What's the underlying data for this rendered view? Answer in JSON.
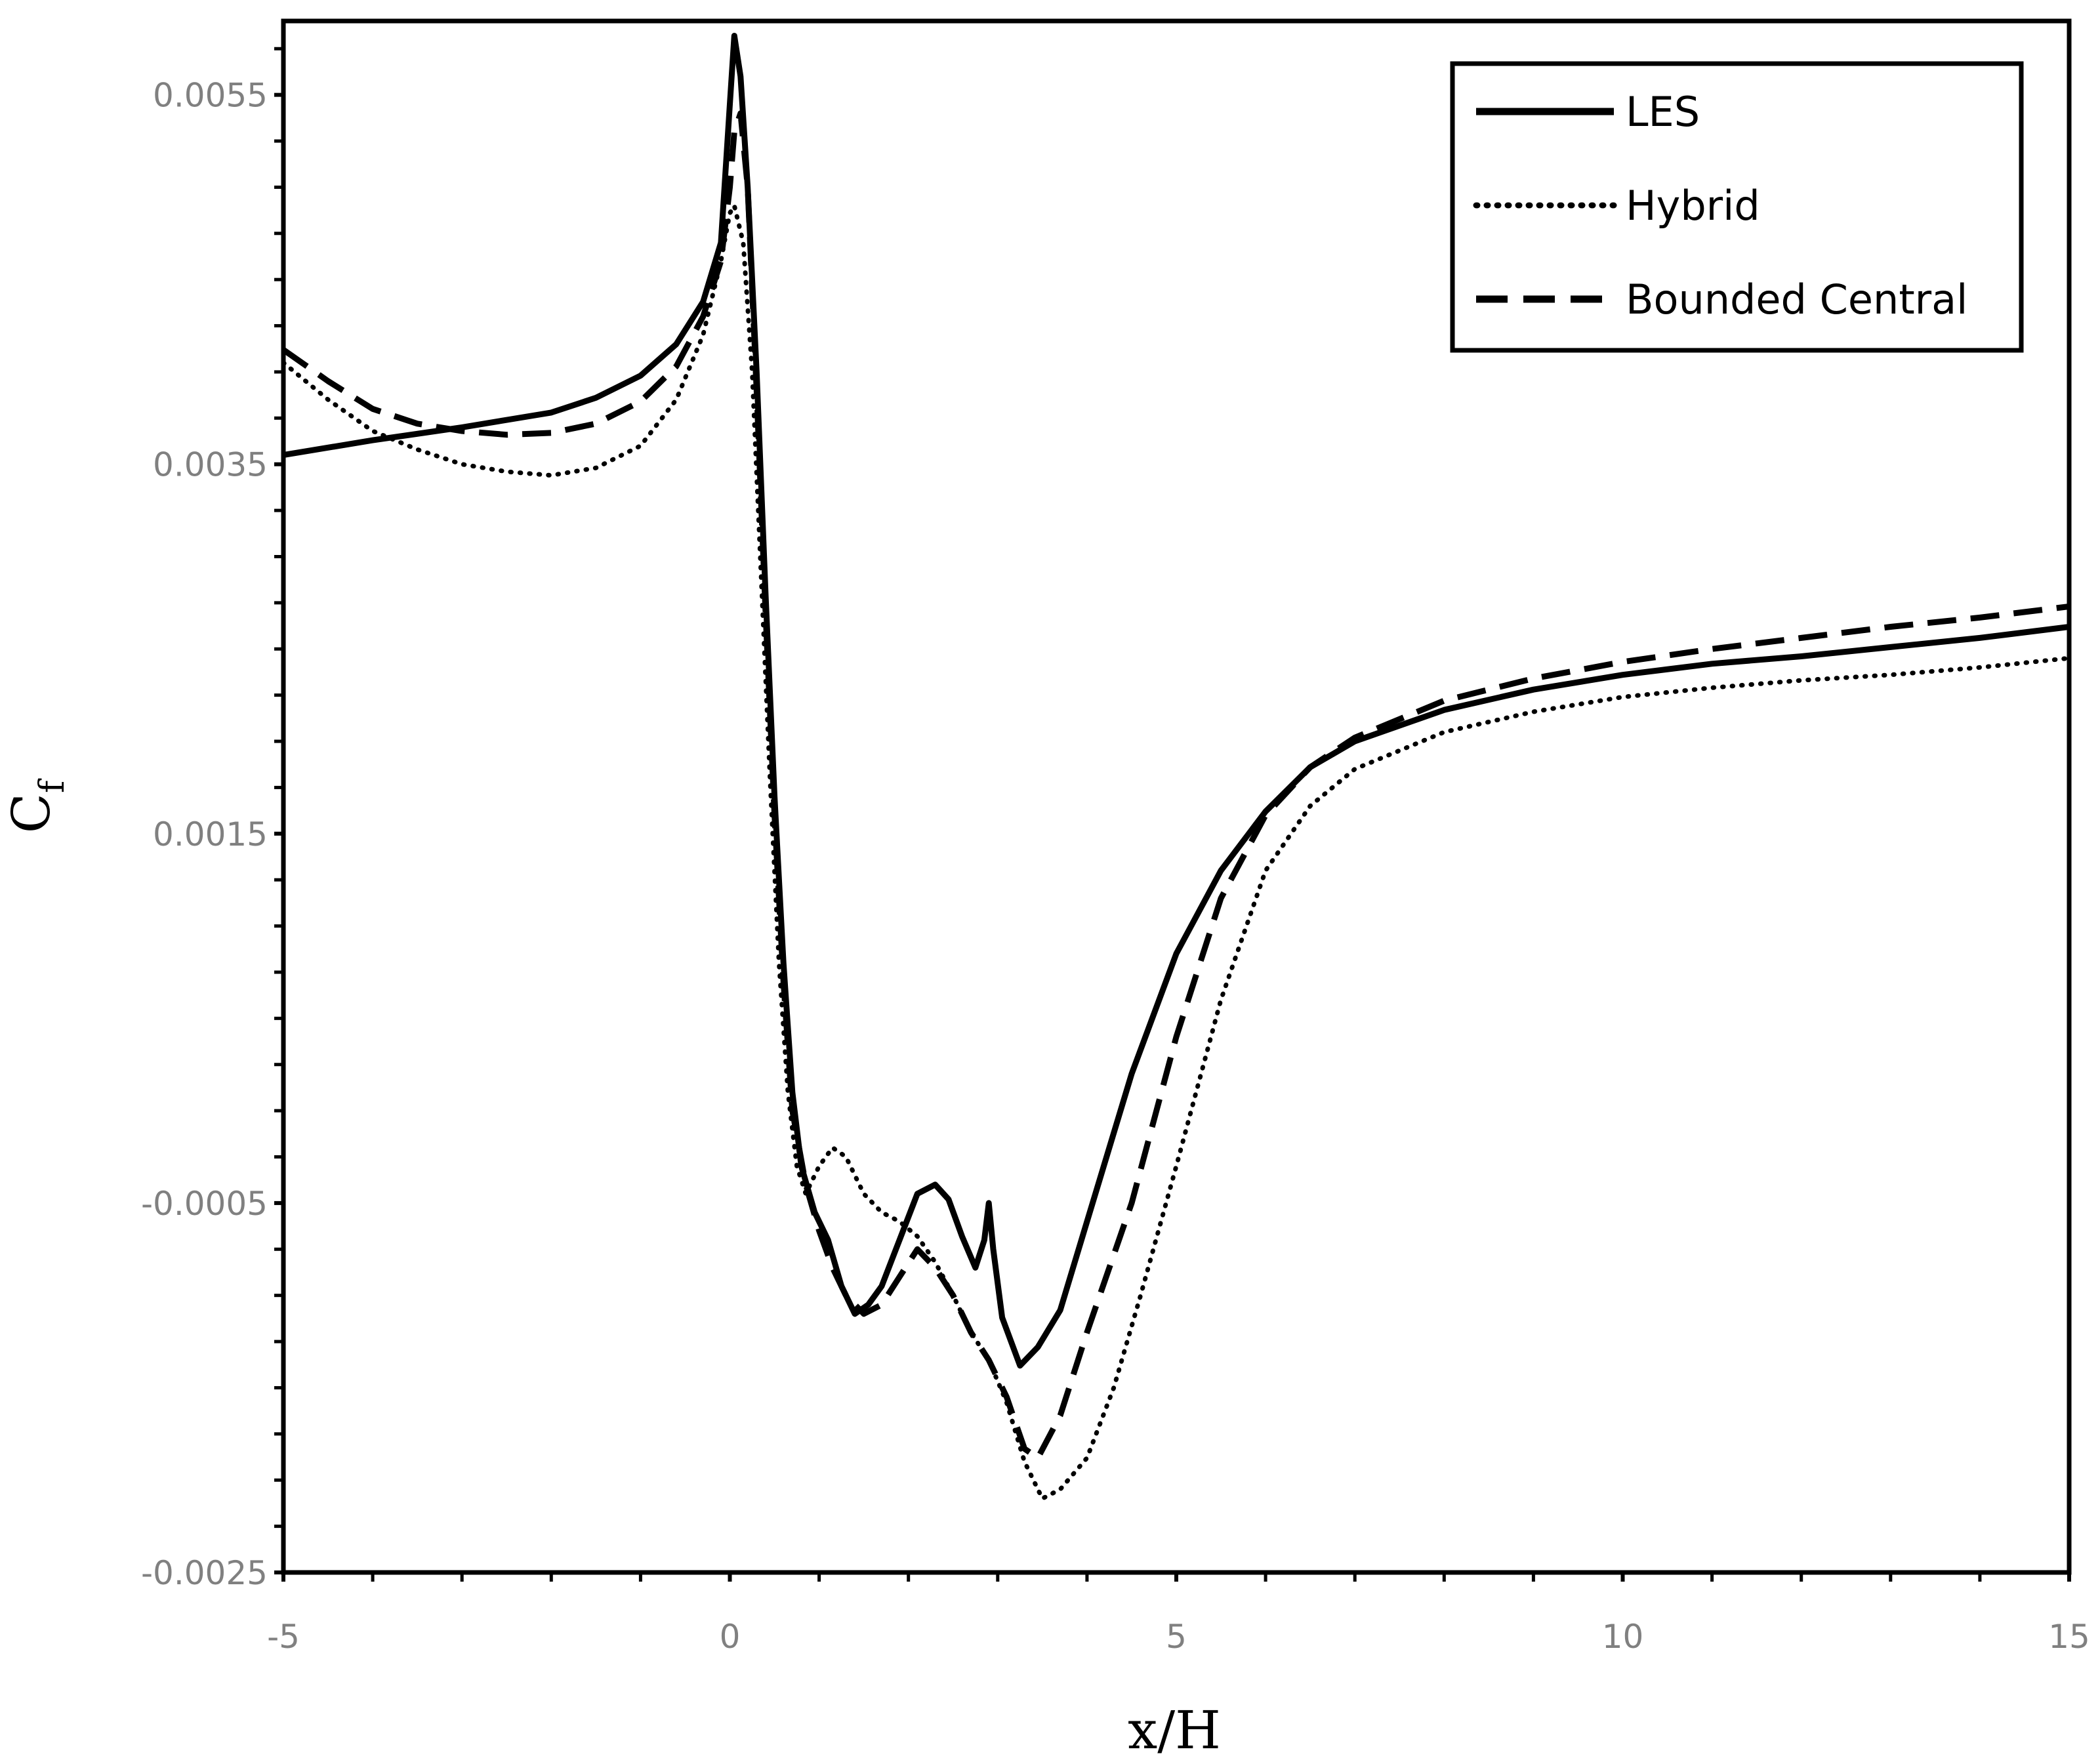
{
  "chart_data": {
    "type": "line",
    "title": "",
    "xlabel": "x/H",
    "ylabel": {
      "main": "C",
      "subscript": "f"
    },
    "xlim": [
      -5,
      15
    ],
    "ylim": [
      -0.0025,
      0.0059
    ],
    "x_ticks": [
      {
        "value": -5,
        "label": "-5"
      },
      {
        "value": 0,
        "label": "0"
      },
      {
        "value": 5,
        "label": "5"
      },
      {
        "value": 10,
        "label": "10"
      },
      {
        "value": 15,
        "label": "15"
      }
    ],
    "y_ticks": [
      {
        "value": -0.0025,
        "label": "-0.0025"
      },
      {
        "value": -0.0005,
        "label": "-0.0005"
      },
      {
        "value": 0.0015,
        "label": "0.0015"
      },
      {
        "value": 0.0035,
        "label": "0.0035"
      },
      {
        "value": 0.0055,
        "label": "0.0055"
      }
    ],
    "grid": false,
    "legend_position": "top-right",
    "series": [
      {
        "name": "LES",
        "style": "solid",
        "color": "#000000",
        "points": [
          [
            -5,
            0.00355
          ],
          [
            -4,
            0.00363
          ],
          [
            -3,
            0.0037
          ],
          [
            -2,
            0.00378
          ],
          [
            -1.5,
            0.00386
          ],
          [
            -1,
            0.00398
          ],
          [
            -0.6,
            0.00415
          ],
          [
            -0.3,
            0.00438
          ],
          [
            -0.1,
            0.0047
          ],
          [
            0,
            0.00545
          ],
          [
            0.05,
            0.00582
          ],
          [
            0.12,
            0.0056
          ],
          [
            0.2,
            0.005
          ],
          [
            0.3,
            0.004
          ],
          [
            0.4,
            0.0028
          ],
          [
            0.5,
            0.0017
          ],
          [
            0.6,
            0.0008
          ],
          [
            0.7,
            0.0001
          ],
          [
            0.8,
            -0.0003
          ],
          [
            0.95,
            -0.00055
          ],
          [
            1.1,
            -0.0007
          ],
          [
            1.25,
            -0.00095
          ],
          [
            1.4,
            -0.0011
          ],
          [
            1.55,
            -0.00105
          ],
          [
            1.7,
            -0.00095
          ],
          [
            1.9,
            -0.0007
          ],
          [
            2.1,
            -0.00045
          ],
          [
            2.3,
            -0.0004
          ],
          [
            2.45,
            -0.00048
          ],
          [
            2.6,
            -0.00068
          ],
          [
            2.75,
            -0.00085
          ],
          [
            2.85,
            -0.0007
          ],
          [
            2.9,
            -0.0005
          ],
          [
            2.95,
            -0.00075
          ],
          [
            3.05,
            -0.00112
          ],
          [
            3.25,
            -0.00138
          ],
          [
            3.45,
            -0.00128
          ],
          [
            3.7,
            -0.00108
          ],
          [
            4,
            -0.0006
          ],
          [
            4.5,
            0.0002
          ],
          [
            5,
            0.00085
          ],
          [
            5.5,
            0.0013
          ],
          [
            6,
            0.00162
          ],
          [
            6.5,
            0.00186
          ],
          [
            7,
            0.002
          ],
          [
            8,
            0.00217
          ],
          [
            9,
            0.00228
          ],
          [
            10,
            0.00236
          ],
          [
            11,
            0.00242
          ],
          [
            12,
            0.00246
          ],
          [
            13,
            0.00251
          ],
          [
            14,
            0.00256
          ],
          [
            15,
            0.00262
          ]
        ]
      },
      {
        "name": "Hybrid",
        "style": "dotted",
        "color": "#000000",
        "points": [
          [
            -5,
            0.00405
          ],
          [
            -4.5,
            0.00385
          ],
          [
            -4,
            0.00368
          ],
          [
            -3.5,
            0.00358
          ],
          [
            -3,
            0.0035
          ],
          [
            -2.5,
            0.00346
          ],
          [
            -2,
            0.00344
          ],
          [
            -1.5,
            0.00348
          ],
          [
            -1,
            0.0036
          ],
          [
            -0.6,
            0.00385
          ],
          [
            -0.3,
            0.0042
          ],
          [
            -0.1,
            0.0046
          ],
          [
            0,
            0.00486
          ],
          [
            0.05,
            0.0049
          ],
          [
            0.15,
            0.0047
          ],
          [
            0.25,
            0.004
          ],
          [
            0.35,
            0.0029
          ],
          [
            0.45,
            0.0018
          ],
          [
            0.55,
            0.0008
          ],
          [
            0.65,
            0.0001
          ],
          [
            0.75,
            -0.0003
          ],
          [
            0.85,
            -0.00045
          ],
          [
            1.0,
            -0.0003
          ],
          [
            1.15,
            -0.0002
          ],
          [
            1.3,
            -0.00025
          ],
          [
            1.5,
            -0.00045
          ],
          [
            1.7,
            -0.00055
          ],
          [
            1.9,
            -0.0006
          ],
          [
            2.1,
            -0.00068
          ],
          [
            2.3,
            -0.00082
          ],
          [
            2.5,
            -0.001
          ],
          [
            2.7,
            -0.0012
          ],
          [
            2.9,
            -0.00135
          ],
          [
            3.1,
            -0.00158
          ],
          [
            3.3,
            -0.0019
          ],
          [
            3.5,
            -0.0021
          ],
          [
            3.7,
            -0.00205
          ],
          [
            4,
            -0.00188
          ],
          [
            4.3,
            -0.0015
          ],
          [
            4.6,
            -0.001
          ],
          [
            5,
            -0.0003
          ],
          [
            5.5,
            0.0006
          ],
          [
            6,
            0.0013
          ],
          [
            6.5,
            0.00165
          ],
          [
            7,
            0.00185
          ],
          [
            8,
            0.00205
          ],
          [
            9,
            0.00216
          ],
          [
            10,
            0.00224
          ],
          [
            11,
            0.00229
          ],
          [
            12,
            0.00233
          ],
          [
            13,
            0.00236
          ],
          [
            14,
            0.0024
          ],
          [
            15,
            0.00245
          ]
        ]
      },
      {
        "name": "Bounded Central",
        "style": "dashed",
        "color": "#000000",
        "points": [
          [
            -5,
            0.00412
          ],
          [
            -4.5,
            0.00395
          ],
          [
            -4,
            0.0038
          ],
          [
            -3.5,
            0.00372
          ],
          [
            -3,
            0.00368
          ],
          [
            -2.5,
            0.00366
          ],
          [
            -2,
            0.00367
          ],
          [
            -1.5,
            0.00372
          ],
          [
            -1,
            0.00384
          ],
          [
            -0.6,
            0.00403
          ],
          [
            -0.3,
            0.0043
          ],
          [
            -0.1,
            0.0046
          ],
          [
            0,
            0.005
          ],
          [
            0.05,
            0.0053
          ],
          [
            0.12,
            0.0054
          ],
          [
            0.2,
            0.005
          ],
          [
            0.3,
            0.0039
          ],
          [
            0.4,
            0.0027
          ],
          [
            0.5,
            0.0016
          ],
          [
            0.6,
            0.0007
          ],
          [
            0.7,
            0.0
          ],
          [
            0.85,
            -0.0004
          ],
          [
            1.0,
            -0.00065
          ],
          [
            1.15,
            -0.00085
          ],
          [
            1.3,
            -0.001
          ],
          [
            1.5,
            -0.0011
          ],
          [
            1.7,
            -0.00105
          ],
          [
            1.9,
            -0.0009
          ],
          [
            2.1,
            -0.00075
          ],
          [
            2.3,
            -0.00085
          ],
          [
            2.5,
            -0.001
          ],
          [
            2.7,
            -0.0012
          ],
          [
            2.9,
            -0.00135
          ],
          [
            3.1,
            -0.00155
          ],
          [
            3.3,
            -0.00183
          ],
          [
            3.45,
            -0.00188
          ],
          [
            3.7,
            -0.00165
          ],
          [
            4,
            -0.0012
          ],
          [
            4.5,
            -0.0005
          ],
          [
            5,
            0.0004
          ],
          [
            5.5,
            0.00115
          ],
          [
            6,
            0.0016
          ],
          [
            6.5,
            0.00186
          ],
          [
            7,
            0.00202
          ],
          [
            8,
            0.00222
          ],
          [
            9,
            0.00234
          ],
          [
            10,
            0.00243
          ],
          [
            11,
            0.0025
          ],
          [
            12,
            0.00256
          ],
          [
            13,
            0.00262
          ],
          [
            14,
            0.00267
          ],
          [
            15,
            0.00273
          ]
        ]
      }
    ]
  }
}
